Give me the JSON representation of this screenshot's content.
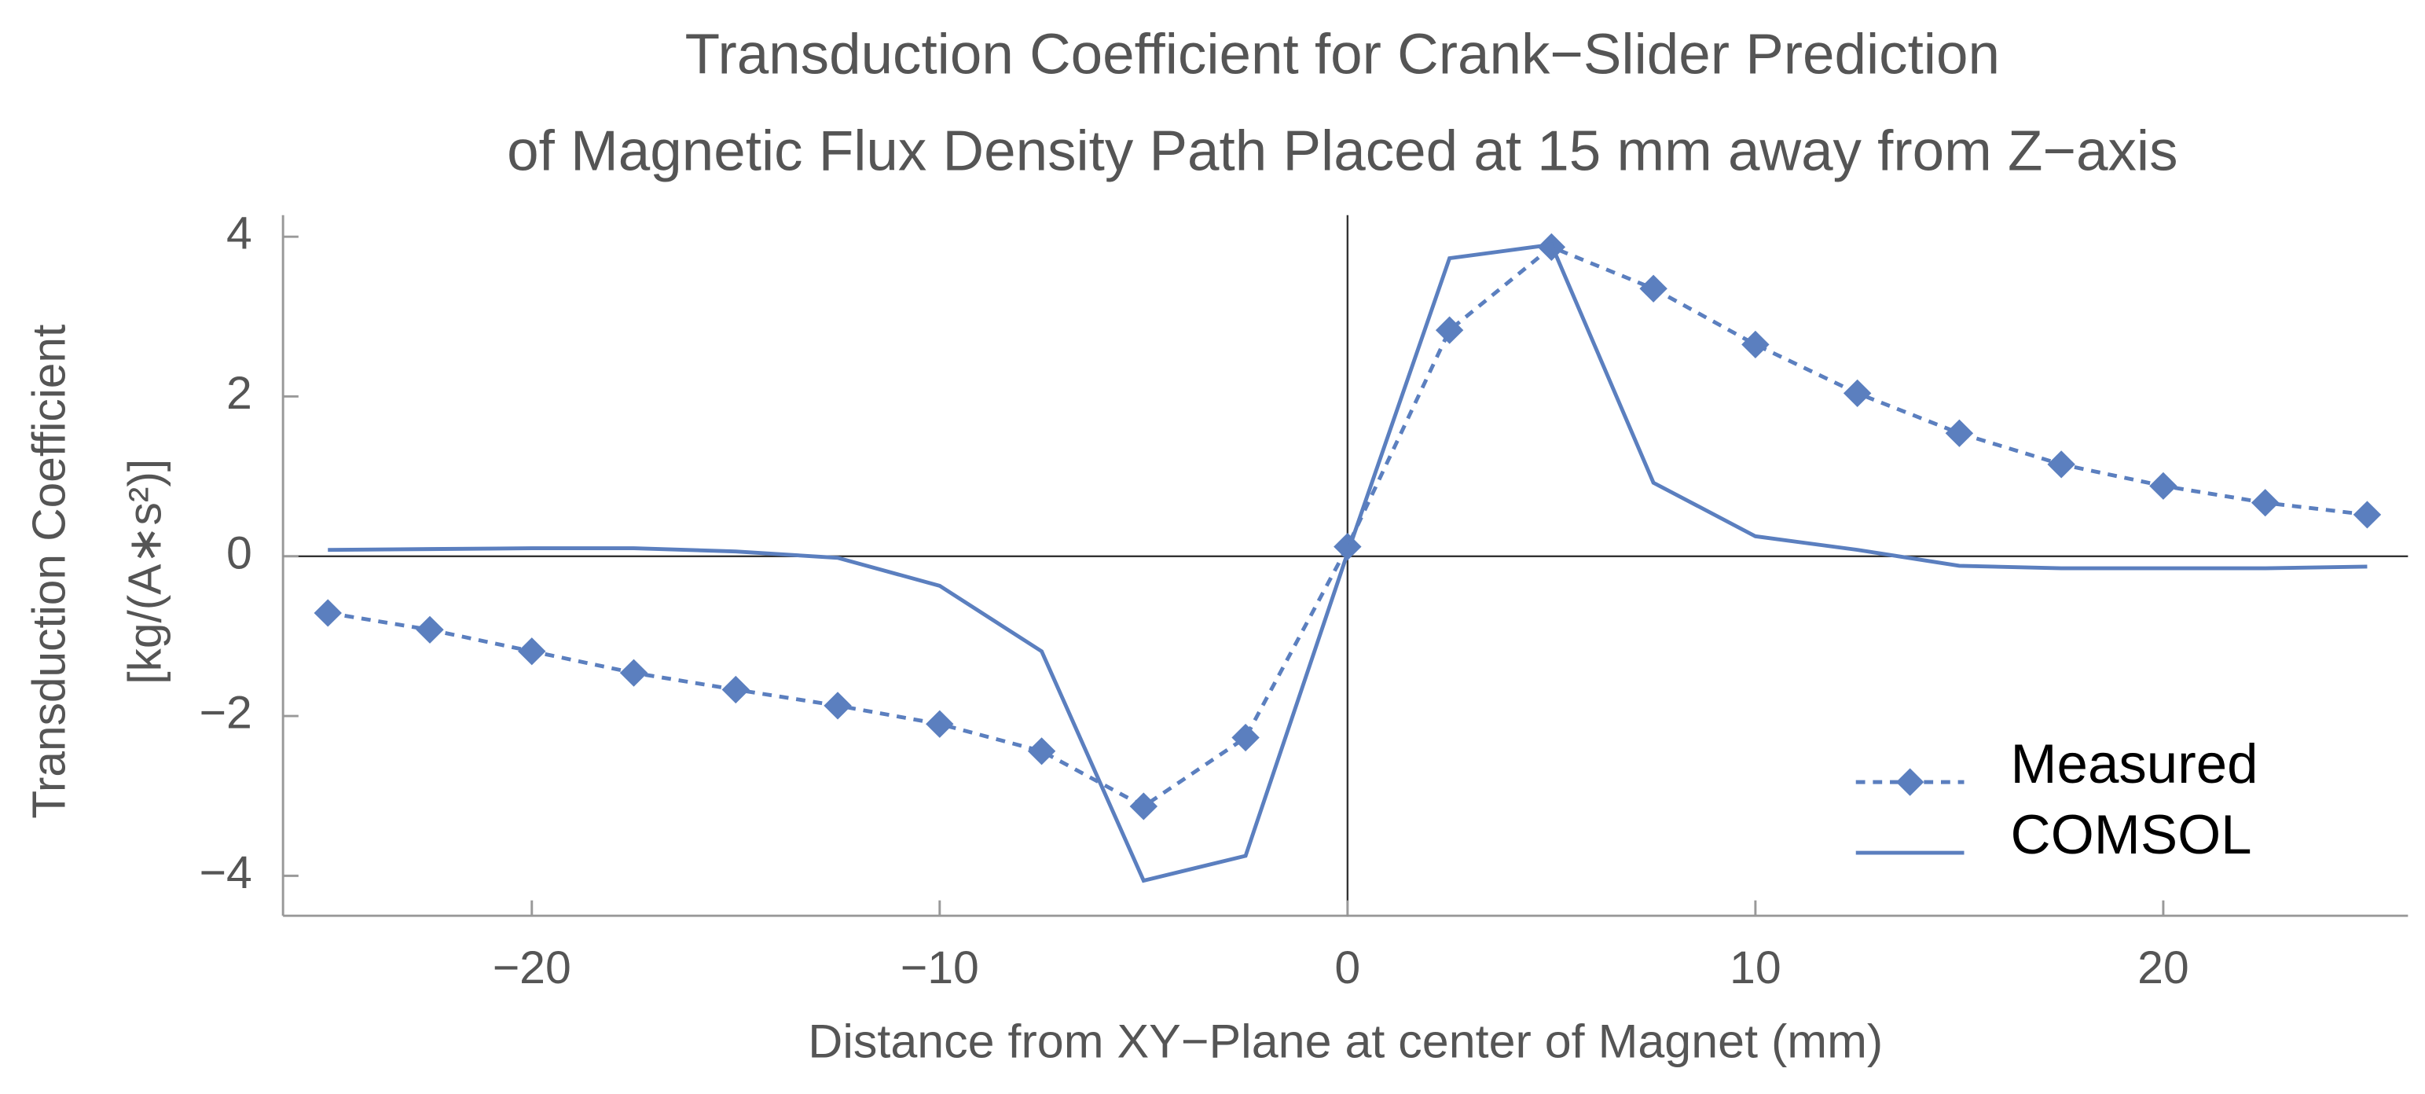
{
  "chart_data": {
    "type": "line",
    "title": [
      "Transduction Coefficient for Crank−Slider Prediction",
      "of Magnetic Flux Density Path Placed at 15 mm away from Z−axis"
    ],
    "x_label": "Distance from XY−Plane at center of Magnet (mm)",
    "y_label": [
      "Transduction Coefficient",
      "[kg/(A∗s²)]"
    ],
    "x": [
      -25,
      -22.5,
      -20,
      -17.5,
      -15,
      -12.5,
      -10,
      -7.5,
      -5,
      -2.5,
      0,
      2.5,
      5,
      7.5,
      10,
      12.5,
      15,
      17.5,
      20,
      22.5,
      25
    ],
    "series": [
      {
        "name": "Measured",
        "color": "#5b7fbf",
        "dashed": true,
        "marker": "diamond",
        "values": [
          -0.71,
          -0.92,
          -1.19,
          -1.46,
          -1.67,
          -1.87,
          -2.1,
          -2.44,
          -3.13,
          -2.27,
          0.12,
          2.83,
          3.87,
          3.35,
          2.65,
          2.04,
          1.54,
          1.15,
          0.88,
          0.67,
          0.52
        ]
      },
      {
        "name": "COMSOL",
        "color": "#5b7fbf",
        "dashed": false,
        "marker": null,
        "values": [
          0.08,
          0.09,
          0.1,
          0.1,
          0.06,
          -0.02,
          -0.37,
          -1.19,
          -4.06,
          -3.75,
          0.04,
          3.73,
          3.9,
          0.92,
          0.25,
          0.08,
          -0.12,
          -0.15,
          -0.15,
          -0.15,
          -0.13
        ]
      }
    ],
    "xlim": [
      -26.1,
      26.0
    ],
    "ylim": [
      -4.5,
      4.27
    ],
    "xticks": [
      {
        "value": -20,
        "label": "−20"
      },
      {
        "value": -10,
        "label": "−10"
      },
      0,
      10,
      20
    ],
    "yticks": [
      {
        "value": -4,
        "label": "−4"
      },
      {
        "value": -2,
        "label": "−2"
      },
      0,
      2,
      4
    ],
    "legend": "lower right"
  }
}
